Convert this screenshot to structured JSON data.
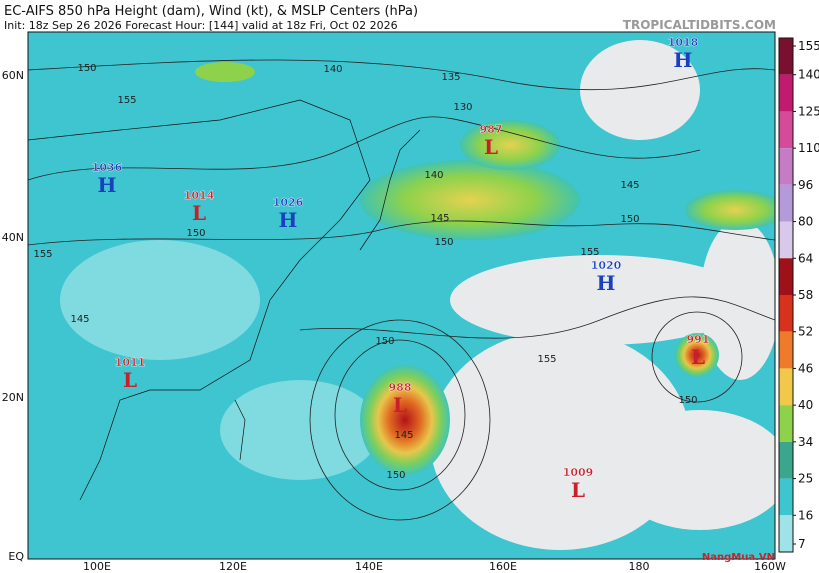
{
  "header": {
    "title": "EC-AIFS 850 hPa Height (dam), Wind (kt), & MSLP Centers (hPa)",
    "subtitle": "Init: 18z Sep 26 2026   Forecast Hour: [144]   valid at 18z Fri, Oct 02 2026",
    "watermark": "TROPICALTIDBITS.COM"
  },
  "logo": "NangMua.VN",
  "lat_labels": [
    "60N",
    "40N",
    "20N",
    "EQ"
  ],
  "lon_labels": [
    "100E",
    "120E",
    "140E",
    "160E",
    "180",
    "160W"
  ],
  "pressure_centers": [
    {
      "symbol": "H",
      "value": "1036",
      "color": "#1a3fbf"
    },
    {
      "symbol": "L",
      "value": "1014",
      "color": "#c8202a"
    },
    {
      "symbol": "H",
      "value": "1026",
      "color": "#1a3fbf"
    },
    {
      "symbol": "H",
      "value": "1018",
      "color": "#1a3fbf"
    },
    {
      "symbol": "H",
      "value": "1020",
      "color": "#1a3fbf"
    },
    {
      "symbol": "L",
      "value": "987",
      "color": "#c8202a"
    },
    {
      "symbol": "L",
      "value": "991",
      "color": "#c8202a"
    },
    {
      "symbol": "L",
      "value": "988",
      "color": "#c8202a"
    },
    {
      "symbol": "L",
      "value": "1011",
      "color": "#c8202a"
    },
    {
      "symbol": "L",
      "value": "1009",
      "color": "#c8202a"
    }
  ],
  "contour_labels": [
    "150",
    "140",
    "135",
    "130",
    "155",
    "150",
    "155",
    "145",
    "140",
    "145",
    "150",
    "145",
    "150",
    "155",
    "150",
    "145",
    "150",
    "155",
    "150"
  ],
  "colorbar": {
    "ticks": [
      155,
      140,
      125,
      110,
      96,
      80,
      64,
      58,
      52,
      46,
      40,
      34,
      25,
      16,
      7
    ],
    "colors": [
      "#7a1030",
      "#c21a6e",
      "#d64a9a",
      "#c67cc4",
      "#b49ad8",
      "#d8c8ea",
      "#a01018",
      "#d8321e",
      "#ee7a2a",
      "#f2c84a",
      "#8ed24c",
      "#3aa68c",
      "#3ec5d0",
      "#9fe3e8"
    ]
  }
}
